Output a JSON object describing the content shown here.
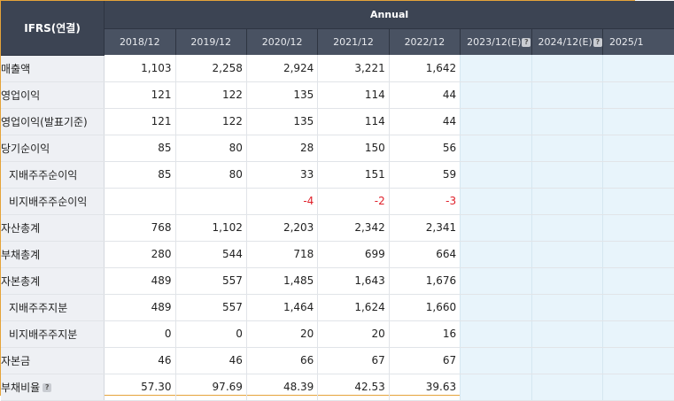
{
  "header": {
    "corner": "IFRS(연결)",
    "group": "Annual",
    "years": [
      {
        "label": "2018/12",
        "estimate": false
      },
      {
        "label": "2019/12",
        "estimate": false
      },
      {
        "label": "2020/12",
        "estimate": false
      },
      {
        "label": "2021/12",
        "estimate": false
      },
      {
        "label": "2022/12",
        "estimate": false
      },
      {
        "label": "2023/12(E)",
        "estimate": true
      },
      {
        "label": "2024/12(E)",
        "estimate": true
      },
      {
        "label": "2025/1",
        "estimate": true
      }
    ],
    "help_glyph": "?"
  },
  "rows": [
    {
      "label": "매출액",
      "sub": false,
      "values": [
        "1,103",
        "2,258",
        "2,924",
        "3,221",
        "1,642"
      ]
    },
    {
      "label": "영업이익",
      "sub": false,
      "values": [
        "121",
        "122",
        "135",
        "114",
        "44"
      ]
    },
    {
      "label": "영업이익(발표기준)",
      "sub": false,
      "values": [
        "121",
        "122",
        "135",
        "114",
        "44"
      ]
    },
    {
      "label": "당기순이익",
      "sub": false,
      "values": [
        "85",
        "80",
        "28",
        "150",
        "56"
      ]
    },
    {
      "label": "지배주주순이익",
      "sub": true,
      "values": [
        "85",
        "80",
        "33",
        "151",
        "59"
      ]
    },
    {
      "label": "비지배주주순이익",
      "sub": true,
      "values": [
        "",
        "",
        "-4",
        "-2",
        "-3"
      ]
    },
    {
      "label": "자산총계",
      "sub": false,
      "values": [
        "768",
        "1,102",
        "2,203",
        "2,342",
        "2,341"
      ]
    },
    {
      "label": "부채총계",
      "sub": false,
      "values": [
        "280",
        "544",
        "718",
        "699",
        "664"
      ]
    },
    {
      "label": "자본총계",
      "sub": false,
      "values": [
        "489",
        "557",
        "1,485",
        "1,643",
        "1,676"
      ]
    },
    {
      "label": "지배주주지분",
      "sub": true,
      "values": [
        "489",
        "557",
        "1,464",
        "1,624",
        "1,660"
      ]
    },
    {
      "label": "비지배주주지분",
      "sub": true,
      "values": [
        "0",
        "0",
        "20",
        "20",
        "16"
      ]
    },
    {
      "label": "자본금",
      "sub": false,
      "values": [
        "46",
        "46",
        "66",
        "67",
        "67"
      ]
    },
    {
      "label": "부채비율",
      "sub": false,
      "help": true,
      "values": [
        "57.30",
        "97.69",
        "48.39",
        "42.53",
        "39.63"
      ]
    }
  ],
  "colors": {
    "header_bg": "#3c4453",
    "subheader_bg": "#495262",
    "label_bg": "#eef0f4",
    "estimate_bg": "#e8f4fb",
    "negative": "#e0202a",
    "frame_border": "#e5a33a"
  }
}
